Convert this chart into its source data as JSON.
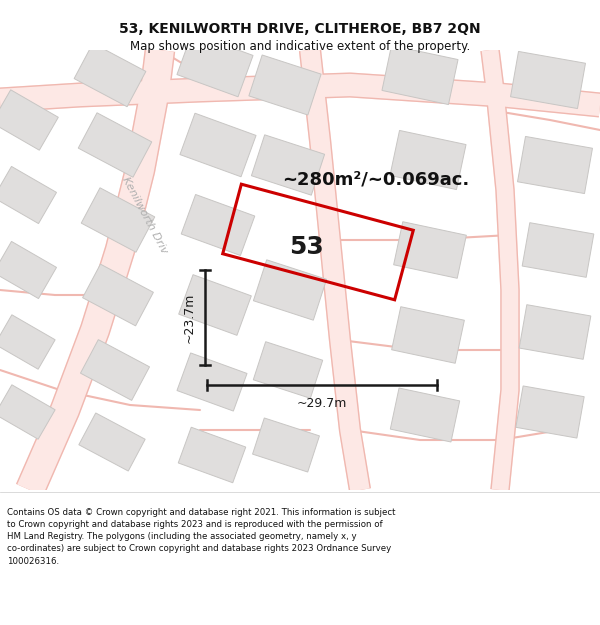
{
  "title": "53, KENILWORTH DRIVE, CLITHEROE, BB7 2QN",
  "subtitle": "Map shows position and indicative extent of the property.",
  "area_label": "~280m²/~0.069ac.",
  "width_label": "~29.7m",
  "height_label": "~23.7m",
  "plot_number": "53",
  "footer_line1": "Contains OS data © Crown copyright and database right 2021. This information is subject",
  "footer_line2": "to Crown copyright and database rights 2023 and is reproduced with the permission of",
  "footer_line3": "HM Land Registry. The polygons (including the associated geometry, namely x, y",
  "footer_line4": "co-ordinates) are subject to Crown copyright and database rights 2023 Ordnance Survey",
  "footer_line5": "100026316.",
  "bg_color": "#ffffff",
  "map_bg": "#f8f7f5",
  "road_outline_color": "#f0b8b0",
  "road_fill_color": "#fde8e5",
  "building_face": "#e0dedd",
  "building_edge": "#c8c6c4",
  "plot_stroke": "#cc0000",
  "dim_color": "#1a1a1a",
  "text_color": "#111111",
  "street_label_color": "#b0b0b0",
  "title_fontsize": 10,
  "subtitle_fontsize": 8.5,
  "footer_fontsize": 6.2,
  "area_fontsize": 13,
  "plot_num_fontsize": 18,
  "dim_fontsize": 9,
  "street_fontsize": 8
}
